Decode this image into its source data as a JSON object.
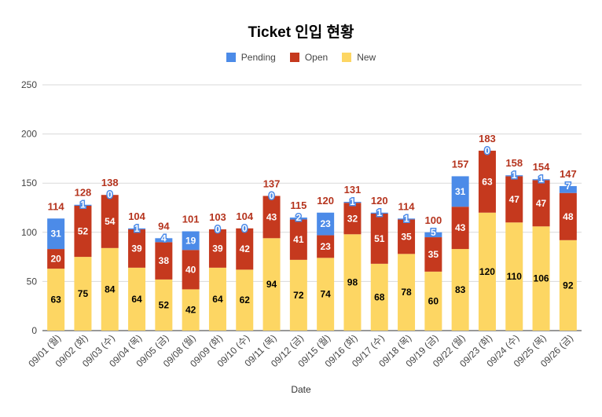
{
  "chart_data": {
    "type": "bar",
    "stacked": true,
    "title": "Ticket 인입 현황",
    "xlabel": "Date",
    "ylabel": "",
    "ylim": [
      0,
      250
    ],
    "yticks": [
      0,
      50,
      100,
      150,
      200,
      250
    ],
    "grid": true,
    "legend_position": "top",
    "categories": [
      "09/01 (월)",
      "09/02 (화)",
      "09/03 (수)",
      "09/04 (목)",
      "09/05 (금)",
      "09/08 (월)",
      "09/09 (화)",
      "09/10 (수)",
      "09/11 (목)",
      "09/12 (금)",
      "09/15 (월)",
      "09/16 (화)",
      "09/17 (수)",
      "09/18 (목)",
      "09/19 (금)",
      "09/22 (월)",
      "09/23 (화)",
      "09/24 (수)",
      "09/25 (목)",
      "09/26 (금)"
    ],
    "series": [
      {
        "name": "New",
        "color": "#fdd663",
        "values": [
          63,
          75,
          84,
          64,
          52,
          42,
          64,
          62,
          94,
          72,
          74,
          98,
          68,
          78,
          60,
          83,
          120,
          110,
          106,
          92
        ]
      },
      {
        "name": "Open",
        "color": "#c5391e",
        "values": [
          20,
          52,
          54,
          39,
          38,
          40,
          39,
          42,
          43,
          41,
          23,
          32,
          51,
          35,
          35,
          43,
          63,
          47,
          47,
          48
        ]
      },
      {
        "name": "Pending",
        "color": "#4c8be8",
        "values": [
          31,
          1,
          0,
          1,
          4,
          19,
          0,
          0,
          0,
          2,
          23,
          1,
          1,
          1,
          5,
          31,
          0,
          1,
          1,
          7
        ]
      }
    ],
    "totals": [
      114,
      128,
      138,
      104,
      94,
      101,
      103,
      104,
      137,
      115,
      120,
      131,
      120,
      114,
      100,
      157,
      183,
      158,
      154,
      147
    ]
  },
  "legend": [
    {
      "label": "Pending",
      "color": "#4c8be8"
    },
    {
      "label": "Open",
      "color": "#c5391e"
    },
    {
      "label": "New",
      "color": "#fdd663"
    }
  ]
}
